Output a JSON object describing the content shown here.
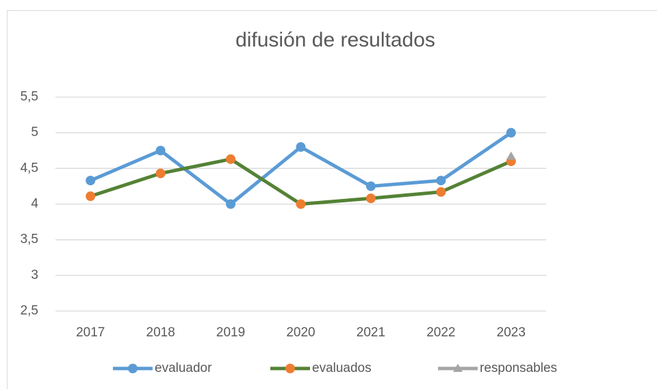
{
  "chart_data": {
    "type": "line",
    "title": "difusión de resultados",
    "categories": [
      "2017",
      "2018",
      "2019",
      "2020",
      "2021",
      "2022",
      "2023"
    ],
    "series": [
      {
        "name": "evaluador",
        "color": "#5b9bd5",
        "marker_color": "#5b9bd5",
        "marker": "circle",
        "values": [
          4.33,
          4.75,
          4.0,
          4.8,
          4.25,
          4.33,
          5.0
        ]
      },
      {
        "name": "evaluados",
        "color": "#548235",
        "marker_color": "#ed7d31",
        "marker": "circle",
        "values": [
          4.11,
          4.43,
          4.63,
          4.0,
          4.08,
          4.17,
          4.6
        ]
      },
      {
        "name": "responsables",
        "color": "#a5a5a5",
        "marker_color": "#a5a5a5",
        "marker": "triangle",
        "values": [
          null,
          null,
          null,
          null,
          null,
          null,
          4.67
        ]
      }
    ],
    "ylim": [
      2.5,
      5.5
    ],
    "yticks": [
      {
        "value": 2.5,
        "label": "2,5"
      },
      3,
      {
        "value": 3.5,
        "label": "3,5"
      },
      4,
      {
        "value": 4.5,
        "label": "4,5"
      },
      5,
      {
        "value": 5.5,
        "label": "5,5"
      }
    ],
    "grid": true,
    "legend": "bottom"
  }
}
